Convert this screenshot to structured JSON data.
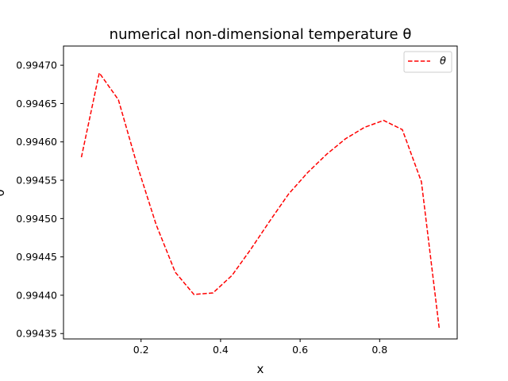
{
  "chart_data": {
    "type": "line",
    "title": "numerical non-dimensional temperature θ",
    "xlabel": "x",
    "ylabel": "θ",
    "xlim": [
      0.005,
      0.995
    ],
    "ylim": [
      0.994343,
      0.994725
    ],
    "xticks": [
      0.2,
      0.4,
      0.6,
      0.8
    ],
    "xtick_labels": [
      "0.2",
      "0.4",
      "0.6",
      "0.8"
    ],
    "yticks": [
      0.99435,
      0.9944,
      0.99445,
      0.9945,
      0.99455,
      0.9946,
      0.99465,
      0.9947
    ],
    "ytick_labels": [
      "0.99435",
      "0.99440",
      "0.99445",
      "0.99450",
      "0.99455",
      "0.99460",
      "0.99465",
      "0.99470"
    ],
    "grid": false,
    "legend_position": "top-right",
    "series": [
      {
        "name": "θ",
        "color": "#ff0000",
        "line_style": "dashed",
        "x": [
          0.05,
          0.095,
          0.143,
          0.19,
          0.238,
          0.286,
          0.333,
          0.381,
          0.429,
          0.476,
          0.524,
          0.571,
          0.619,
          0.667,
          0.714,
          0.762,
          0.81,
          0.857,
          0.905,
          0.95
        ],
        "y": [
          0.99458,
          0.99469,
          0.994655,
          0.99457,
          0.994492,
          0.99443,
          0.994401,
          0.994403,
          0.994426,
          0.99446,
          0.994497,
          0.994532,
          0.99456,
          0.994584,
          0.994604,
          0.994619,
          0.994628,
          0.994616,
          0.994548,
          0.994356
        ]
      }
    ]
  }
}
